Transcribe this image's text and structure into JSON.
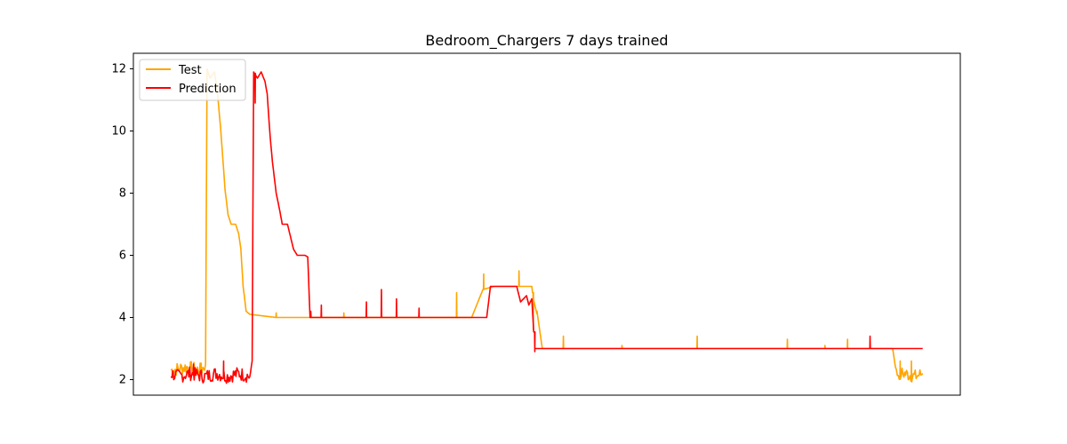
{
  "chart_data": {
    "type": "line",
    "title": "Bedroom_Chargers 7 days trained",
    "xlabel": "",
    "ylabel": "",
    "xlim": [
      -50,
      1050
    ],
    "ylim": [
      1.5,
      12.5
    ],
    "yticks": [
      2,
      4,
      6,
      8,
      10,
      12
    ],
    "x_ticks_shown": false,
    "grid": false,
    "legend": "top-left",
    "series": [
      {
        "name": "Test",
        "color": "#FFA500",
        "points": [
          [
            0,
            2.3
          ],
          [
            20,
            2.4
          ],
          [
            40,
            2.3
          ],
          [
            46,
            2.5
          ],
          [
            48,
            12.0
          ],
          [
            52,
            11.7
          ],
          [
            58,
            11.9
          ],
          [
            62,
            11.2
          ],
          [
            66,
            10.1
          ],
          [
            69,
            9.1
          ],
          [
            72,
            8.1
          ],
          [
            76,
            7.3
          ],
          [
            80,
            7.0
          ],
          [
            86,
            7.0
          ],
          [
            90,
            6.7
          ],
          [
            93,
            6.2
          ],
          [
            96,
            5.0
          ],
          [
            100,
            4.2
          ],
          [
            105,
            4.1
          ],
          [
            140,
            4.0
          ],
          [
            260,
            4.0
          ],
          [
            360,
            4.0
          ],
          [
            400,
            4.0
          ],
          [
            415,
            4.9
          ],
          [
            430,
            5.0
          ],
          [
            480,
            5.0
          ],
          [
            482,
            4.6
          ],
          [
            488,
            4.0
          ],
          [
            494,
            3.0
          ],
          [
            600,
            3.0
          ],
          [
            700,
            3.0
          ],
          [
            800,
            3.0
          ],
          [
            960,
            3.0
          ],
          [
            965,
            2.2
          ],
          [
            975,
            2.2
          ],
          [
            990,
            2.1
          ],
          [
            1000,
            2.2
          ]
        ],
        "spikes": [
          [
            40,
            2.5
          ],
          [
            140,
            4.15
          ],
          [
            230,
            4.15
          ],
          [
            300,
            4.2
          ],
          [
            380,
            4.8
          ],
          [
            416,
            5.4
          ],
          [
            463,
            5.5
          ],
          [
            482,
            3.6
          ],
          [
            487,
            4.2
          ],
          [
            522,
            3.4
          ],
          [
            600,
            3.1
          ],
          [
            700,
            3.4
          ],
          [
            820,
            3.3
          ],
          [
            870,
            3.1
          ],
          [
            900,
            3.3
          ],
          [
            970,
            2.6
          ],
          [
            985,
            2.6
          ]
        ]
      },
      {
        "name": "Prediction",
        "color": "#FF0000",
        "points": [
          [
            0,
            2.2
          ],
          [
            10,
            2.1
          ],
          [
            25,
            2.2
          ],
          [
            45,
            2.1
          ],
          [
            60,
            2.2
          ],
          [
            75,
            2.1
          ],
          [
            90,
            2.2
          ],
          [
            105,
            2.1
          ],
          [
            108,
            2.6
          ],
          [
            110,
            11.9
          ],
          [
            115,
            11.7
          ],
          [
            120,
            11.9
          ],
          [
            125,
            11.6
          ],
          [
            128,
            11.2
          ],
          [
            132,
            9.8
          ],
          [
            135,
            9.0
          ],
          [
            140,
            8.0
          ],
          [
            145,
            7.4
          ],
          [
            148,
            7.0
          ],
          [
            155,
            7.0
          ],
          [
            160,
            6.5
          ],
          [
            163,
            6.2
          ],
          [
            168,
            6.0
          ],
          [
            178,
            6.0
          ],
          [
            182,
            5.95
          ],
          [
            185,
            4.0
          ],
          [
            260,
            4.0
          ],
          [
            360,
            4.0
          ],
          [
            420,
            4.0
          ],
          [
            425,
            5.0
          ],
          [
            460,
            5.0
          ],
          [
            465,
            4.5
          ],
          [
            473,
            4.7
          ],
          [
            476,
            4.4
          ],
          [
            480,
            4.6
          ],
          [
            484,
            3.0
          ],
          [
            600,
            3.0
          ],
          [
            800,
            3.0
          ],
          [
            950,
            3.0
          ],
          [
            1000,
            3.0
          ]
        ],
        "spikes": [
          [
            30,
            2.5
          ],
          [
            70,
            2.6
          ],
          [
            112,
            10.9
          ],
          [
            186,
            4.2
          ],
          [
            200,
            4.4
          ],
          [
            260,
            4.5
          ],
          [
            280,
            4.9
          ],
          [
            300,
            4.6
          ],
          [
            330,
            4.3
          ],
          [
            427,
            5.0
          ],
          [
            484,
            2.9
          ],
          [
            930,
            3.4
          ]
        ]
      }
    ]
  }
}
